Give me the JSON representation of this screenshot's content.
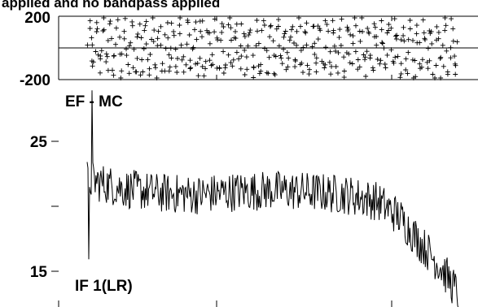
{
  "chart_data": [
    {
      "type": "scatter",
      "panel": "phase",
      "title": "applied and no bandpass applied",
      "ylim": [
        -200,
        200
      ],
      "y_tick_labels": [
        "200",
        "-200"
      ],
      "marker": "+",
      "n_points": 420,
      "x_range": [
        0,
        1
      ]
    },
    {
      "type": "line",
      "panel": "amplitude",
      "label_top": "EF - MC",
      "label_bottom": "IF 1(LR)",
      "ylim": [
        13.8,
        28.5
      ],
      "y_tick_labels": [
        "25",
        "15"
      ],
      "x_range": [
        0,
        1
      ],
      "y_profile": [
        [
          0.0,
          22.0
        ],
        [
          0.1,
          21.4
        ],
        [
          0.2,
          21.1
        ],
        [
          0.3,
          21.0
        ],
        [
          0.4,
          21.2
        ],
        [
          0.5,
          21.3
        ],
        [
          0.6,
          21.2
        ],
        [
          0.7,
          21.0
        ],
        [
          0.78,
          20.6
        ],
        [
          0.84,
          19.6
        ],
        [
          0.9,
          17.8
        ],
        [
          0.95,
          16.4
        ],
        [
          1.0,
          14.5
        ]
      ],
      "noise_amplitude": 1.3,
      "spikes": [
        [
          0.013,
          27.8
        ],
        [
          0.0,
          16.8
        ]
      ]
    }
  ],
  "colors": {
    "ink": "#000000",
    "background": "#ffffff"
  }
}
